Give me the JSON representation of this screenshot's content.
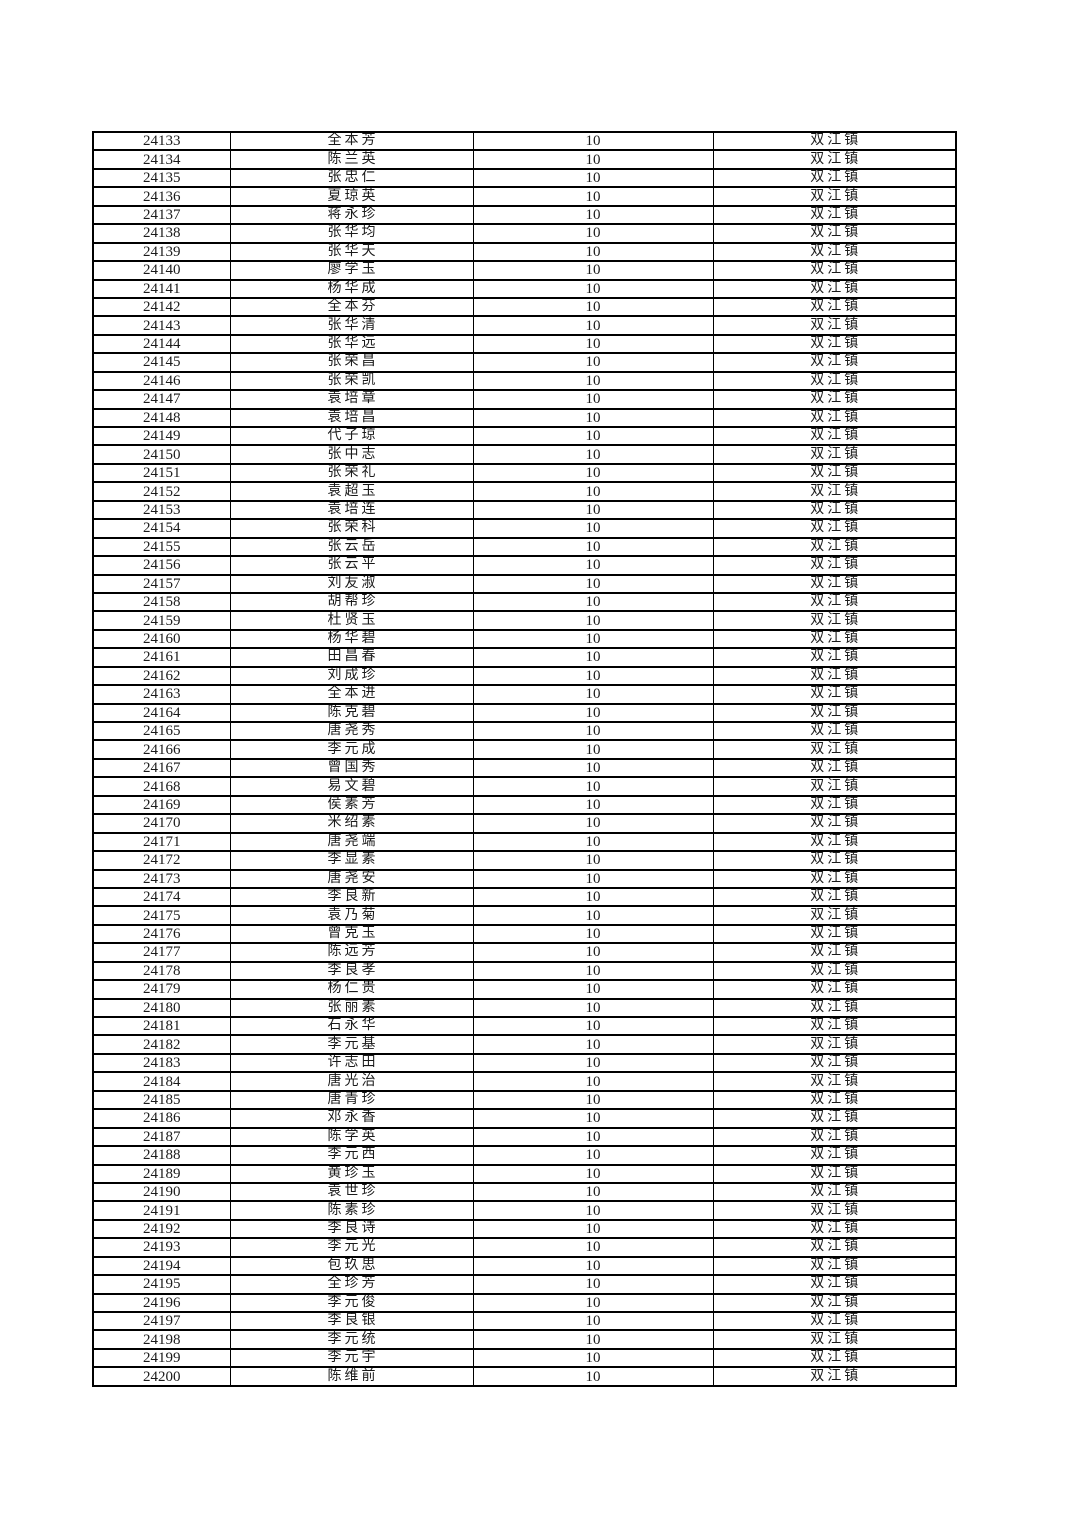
{
  "colors": {
    "background": "#ffffff",
    "border": "#000000",
    "text": "#1a1a1a"
  },
  "table": {
    "rows": [
      [
        "24133",
        "全本芳",
        "10",
        "双江镇"
      ],
      [
        "24134",
        "陈兰英",
        "10",
        "双江镇"
      ],
      [
        "24135",
        "张忠仁",
        "10",
        "双江镇"
      ],
      [
        "24136",
        "夏琼英",
        "10",
        "双江镇"
      ],
      [
        "24137",
        "蒋永珍",
        "10",
        "双江镇"
      ],
      [
        "24138",
        "张华均",
        "10",
        "双江镇"
      ],
      [
        "24139",
        "张华天",
        "10",
        "双江镇"
      ],
      [
        "24140",
        "廖学玉",
        "10",
        "双江镇"
      ],
      [
        "24141",
        "杨华成",
        "10",
        "双江镇"
      ],
      [
        "24142",
        "全本芬",
        "10",
        "双江镇"
      ],
      [
        "24143",
        "张华清",
        "10",
        "双江镇"
      ],
      [
        "24144",
        "张华远",
        "10",
        "双江镇"
      ],
      [
        "24145",
        "张荣昌",
        "10",
        "双江镇"
      ],
      [
        "24146",
        "张荣凯",
        "10",
        "双江镇"
      ],
      [
        "24147",
        "袁培章",
        "10",
        "双江镇"
      ],
      [
        "24148",
        "袁培昌",
        "10",
        "双江镇"
      ],
      [
        "24149",
        "代子琼",
        "10",
        "双江镇"
      ],
      [
        "24150",
        "张中志",
        "10",
        "双江镇"
      ],
      [
        "24151",
        "张荣礼",
        "10",
        "双江镇"
      ],
      [
        "24152",
        "袁超玉",
        "10",
        "双江镇"
      ],
      [
        "24153",
        "袁培连",
        "10",
        "双江镇"
      ],
      [
        "24154",
        "张荣科",
        "10",
        "双江镇"
      ],
      [
        "24155",
        "张云岳",
        "10",
        "双江镇"
      ],
      [
        "24156",
        "张云平",
        "10",
        "双江镇"
      ],
      [
        "24157",
        "刘友淑",
        "10",
        "双江镇"
      ],
      [
        "24158",
        "胡帮珍",
        "10",
        "双江镇"
      ],
      [
        "24159",
        "杜贤玉",
        "10",
        "双江镇"
      ],
      [
        "24160",
        "杨华碧",
        "10",
        "双江镇"
      ],
      [
        "24161",
        "田昌春",
        "10",
        "双江镇"
      ],
      [
        "24162",
        "刘成珍",
        "10",
        "双江镇"
      ],
      [
        "24163",
        "全本进",
        "10",
        "双江镇"
      ],
      [
        "24164",
        "陈克碧",
        "10",
        "双江镇"
      ],
      [
        "24165",
        "唐尧秀",
        "10",
        "双江镇"
      ],
      [
        "24166",
        "李元成",
        "10",
        "双江镇"
      ],
      [
        "24167",
        "曾国秀",
        "10",
        "双江镇"
      ],
      [
        "24168",
        "易文碧",
        "10",
        "双江镇"
      ],
      [
        "24169",
        "侯素芳",
        "10",
        "双江镇"
      ],
      [
        "24170",
        "米绍素",
        "10",
        "双江镇"
      ],
      [
        "24171",
        "唐尧端",
        "10",
        "双江镇"
      ],
      [
        "24172",
        "李显素",
        "10",
        "双江镇"
      ],
      [
        "24173",
        "唐尧安",
        "10",
        "双江镇"
      ],
      [
        "24174",
        "李良新",
        "10",
        "双江镇"
      ],
      [
        "24175",
        "袁乃菊",
        "10",
        "双江镇"
      ],
      [
        "24176",
        "曾克玉",
        "10",
        "双江镇"
      ],
      [
        "24177",
        "陈远芳",
        "10",
        "双江镇"
      ],
      [
        "24178",
        "李良孝",
        "10",
        "双江镇"
      ],
      [
        "24179",
        "杨仁贵",
        "10",
        "双江镇"
      ],
      [
        "24180",
        "张丽素",
        "10",
        "双江镇"
      ],
      [
        "24181",
        "石永华",
        "10",
        "双江镇"
      ],
      [
        "24182",
        "李元基",
        "10",
        "双江镇"
      ],
      [
        "24183",
        "许志田",
        "10",
        "双江镇"
      ],
      [
        "24184",
        "唐光治",
        "10",
        "双江镇"
      ],
      [
        "24185",
        "唐青珍",
        "10",
        "双江镇"
      ],
      [
        "24186",
        "邓永香",
        "10",
        "双江镇"
      ],
      [
        "24187",
        "陈学英",
        "10",
        "双江镇"
      ],
      [
        "24188",
        "李元西",
        "10",
        "双江镇"
      ],
      [
        "24189",
        "黄珍玉",
        "10",
        "双江镇"
      ],
      [
        "24190",
        "袁世珍",
        "10",
        "双江镇"
      ],
      [
        "24191",
        "陈素珍",
        "10",
        "双江镇"
      ],
      [
        "24192",
        "李良诗",
        "10",
        "双江镇"
      ],
      [
        "24193",
        "李元光",
        "10",
        "双江镇"
      ],
      [
        "24194",
        "包玖思",
        "10",
        "双江镇"
      ],
      [
        "24195",
        "全珍芳",
        "10",
        "双江镇"
      ],
      [
        "24196",
        "李元俊",
        "10",
        "双江镇"
      ],
      [
        "24197",
        "李良银",
        "10",
        "双江镇"
      ],
      [
        "24198",
        "李元统",
        "10",
        "双江镇"
      ],
      [
        "24199",
        "李元宇",
        "10",
        "双江镇"
      ],
      [
        "24200",
        "陈维前",
        "10",
        "双江镇"
      ]
    ]
  }
}
